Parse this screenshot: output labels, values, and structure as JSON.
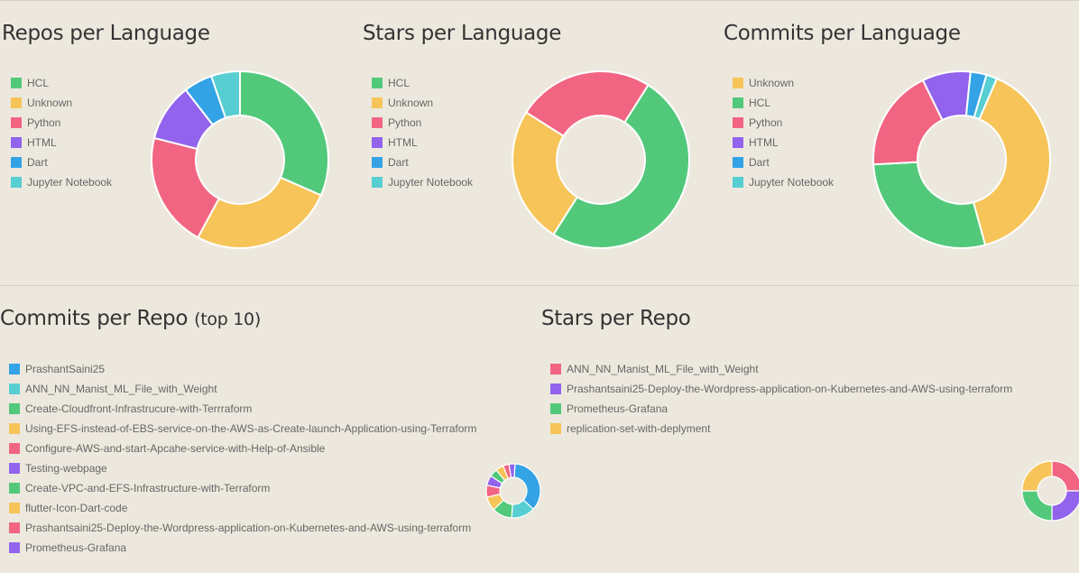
{
  "colors": {
    "green": "#52c97a",
    "yellow": "#f6c458",
    "red": "#f16582",
    "purple": "#9263ec",
    "blue": "#33a3e6",
    "teal": "#57ced1"
  },
  "chart_data": [
    {
      "id": "repos-per-language",
      "type": "pie",
      "title": "Repos per Language",
      "subtitle": "",
      "legend_position": "left",
      "slices": [
        {
          "label": "HCL",
          "value": 6,
          "color": "#52c97a"
        },
        {
          "label": "Unknown",
          "value": 5,
          "color": "#f6c458"
        },
        {
          "label": "Python",
          "value": 4,
          "color": "#f16582"
        },
        {
          "label": "HTML",
          "value": 2,
          "color": "#9263ec"
        },
        {
          "label": "Dart",
          "value": 1,
          "color": "#33a3e6"
        },
        {
          "label": "Jupyter Notebook",
          "value": 1,
          "color": "#57ced1"
        }
      ]
    },
    {
      "id": "stars-per-language",
      "type": "pie",
      "title": "Stars per Language",
      "subtitle": "",
      "legend_position": "left",
      "slices": [
        {
          "label": "HCL",
          "value": 2,
          "color": "#52c97a"
        },
        {
          "label": "Unknown",
          "value": 1,
          "color": "#f6c458"
        },
        {
          "label": "Python",
          "value": 1,
          "color": "#f16582"
        },
        {
          "label": "HTML",
          "value": 0,
          "color": "#9263ec"
        },
        {
          "label": "Dart",
          "value": 0,
          "color": "#33a3e6"
        },
        {
          "label": "Jupyter Notebook",
          "value": 0,
          "color": "#57ced1"
        }
      ]
    },
    {
      "id": "commits-per-language",
      "type": "pie",
      "title": "Commits per Language",
      "subtitle": "",
      "legend_position": "left",
      "slices": [
        {
          "label": "Unknown",
          "value": 40,
          "color": "#f6c458"
        },
        {
          "label": "HCL",
          "value": 29,
          "color": "#52c97a"
        },
        {
          "label": "Python",
          "value": 19,
          "color": "#f16582"
        },
        {
          "label": "HTML",
          "value": 9,
          "color": "#9263ec"
        },
        {
          "label": "Dart",
          "value": 3,
          "color": "#33a3e6"
        },
        {
          "label": "Jupyter Notebook",
          "value": 2,
          "color": "#57ced1"
        }
      ]
    },
    {
      "id": "commits-per-repo",
      "type": "pie",
      "title": "Commits per Repo",
      "subtitle": "(top 10)",
      "legend_position": "left",
      "slices": [
        {
          "label": "PrashantSaini25",
          "value": 30,
          "color": "#33a3e6"
        },
        {
          "label": "ANN_NN_Manist_ML_File_with_Weight",
          "value": 12,
          "color": "#57ced1"
        },
        {
          "label": "Create-Cloudfront-Infrastrucure-with-Terrraform",
          "value": 10,
          "color": "#52c97a"
        },
        {
          "label": "Using-EFS-instead-of-EBS-service-on-the-AWS-as-Create-launch-Application-using-Terraform",
          "value": 7,
          "color": "#f6c458"
        },
        {
          "label": "Configure-AWS-and-start-Apcahe-service-with-Help-of-Ansible",
          "value": 6,
          "color": "#f16582"
        },
        {
          "label": "Testing-webpage",
          "value": 5,
          "color": "#9263ec"
        },
        {
          "label": "Create-VPC-and-EFS-Infrastructure-with-Terraform",
          "value": 4,
          "color": "#52c97a"
        },
        {
          "label": "flutter-Icon-Dart-code",
          "value": 4,
          "color": "#f6c458"
        },
        {
          "label": "Prashantsaini25-Deploy-the-Wordpress-application-on-Kubernetes-and-AWS-using-terraform",
          "value": 3,
          "color": "#f16582"
        },
        {
          "label": "Prometheus-Grafana",
          "value": 3,
          "color": "#9263ec"
        }
      ]
    },
    {
      "id": "stars-per-repo",
      "type": "pie",
      "title": "Stars per Repo",
      "subtitle": "",
      "legend_position": "left",
      "slices": [
        {
          "label": "ANN_NN_Manist_ML_File_with_Weight",
          "value": 1,
          "color": "#f16582"
        },
        {
          "label": "Prashantsaini25-Deploy-the-Wordpress-application-on-Kubernetes-and-AWS-using-terraform",
          "value": 1,
          "color": "#9263ec"
        },
        {
          "label": "Prometheus-Grafana",
          "value": 1,
          "color": "#52c97a"
        },
        {
          "label": "replication-set-with-deplyment",
          "value": 1,
          "color": "#f6c458"
        }
      ]
    }
  ]
}
